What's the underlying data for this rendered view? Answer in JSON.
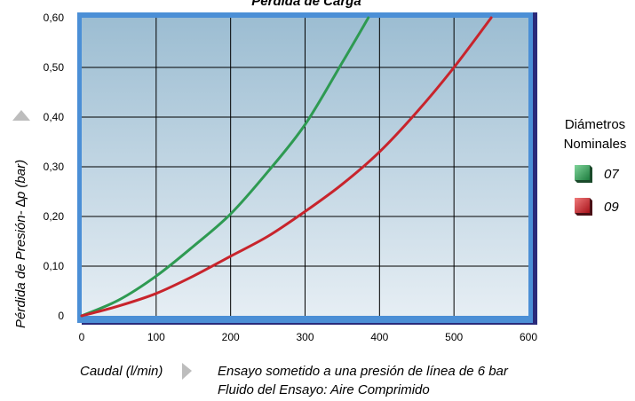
{
  "chart_data": {
    "type": "line",
    "title": "Pérdida de Carga",
    "xlabel": "Caudal (l/min)",
    "ylabel": "Pérdida de Presión- ∆p (bar)",
    "xlim": [
      0,
      600
    ],
    "ylim": [
      0,
      0.6
    ],
    "x_ticks": [
      "0",
      "100",
      "200",
      "300",
      "400",
      "500",
      "600"
    ],
    "y_ticks": [
      "0",
      "0,10",
      "0,20",
      "0,30",
      "0,40",
      "0,50",
      "0,60"
    ],
    "grid": true,
    "legend_title": [
      "Diámetros",
      "Nominales"
    ],
    "legend_position": "right",
    "notes": [
      "Ensayo sometido a una presión de línea de 6 bar",
      "Fluido del Ensayo: Aire Comprimido"
    ],
    "series": [
      {
        "name": "07",
        "color": "#2e9a52",
        "x": [
          0,
          50,
          100,
          150,
          200,
          250,
          300,
          350,
          385
        ],
        "y": [
          0,
          0.032,
          0.08,
          0.14,
          0.205,
          0.29,
          0.385,
          0.51,
          0.6
        ]
      },
      {
        "name": "09",
        "color": "#c8242c",
        "x": [
          0,
          50,
          100,
          150,
          200,
          250,
          300,
          350,
          400,
          450,
          500,
          550
        ],
        "y": [
          0,
          0.02,
          0.045,
          0.08,
          0.12,
          0.16,
          0.21,
          0.265,
          0.33,
          0.41,
          0.5,
          0.6
        ]
      }
    ]
  }
}
